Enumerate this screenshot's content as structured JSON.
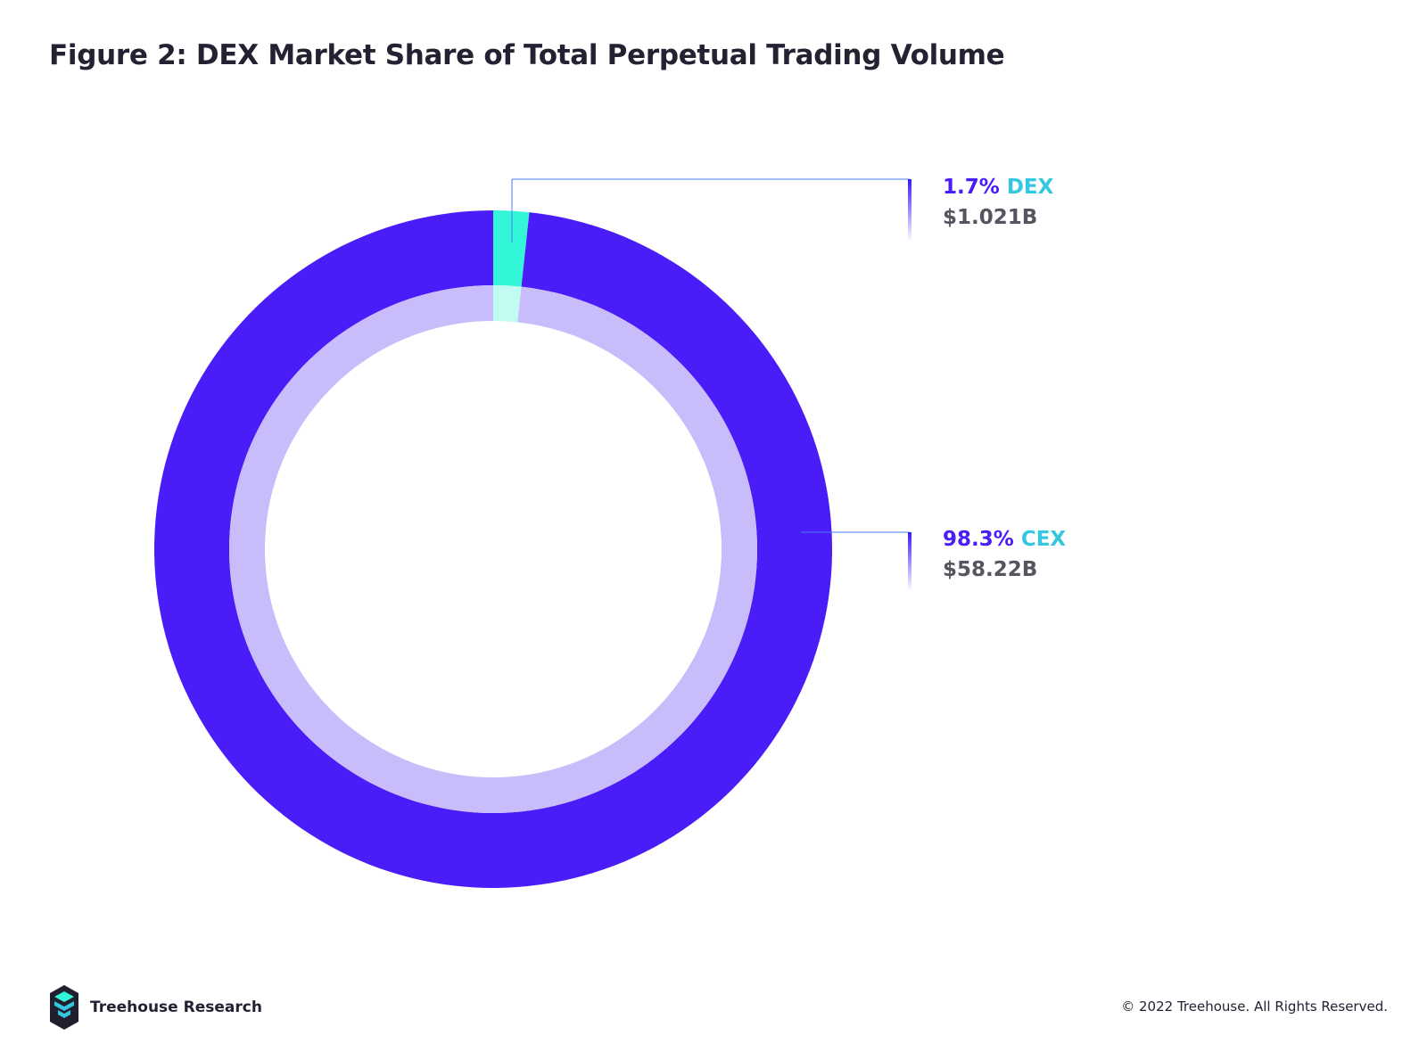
{
  "figure": {
    "title": "Figure 2: DEX Market Share of Total Perpetual Trading Volume"
  },
  "chart_data": {
    "type": "pie",
    "title": "Figure 2: DEX Market Share of Total Perpetual Trading Volume",
    "slices": [
      {
        "name": "DEX",
        "percent_label": "1.7%",
        "value": 1.7,
        "amount": "$1.021B",
        "color": "#33f5d8",
        "inner_color": "#c2fbf2"
      },
      {
        "name": "CEX",
        "percent_label": "98.3%",
        "value": 98.3,
        "amount": "$58.22B",
        "color": "#4a1cf7",
        "inner_color": "#c8bcfb"
      }
    ],
    "colors": {
      "percent_text": "#4a1cf7",
      "name_text": "#33c8e0",
      "amount_text": "#55555f",
      "leader_line": "#4a7df7"
    }
  },
  "footer": {
    "brand": "Treehouse Research",
    "copyright": "© 2022 Treehouse. All Rights Reserved."
  }
}
